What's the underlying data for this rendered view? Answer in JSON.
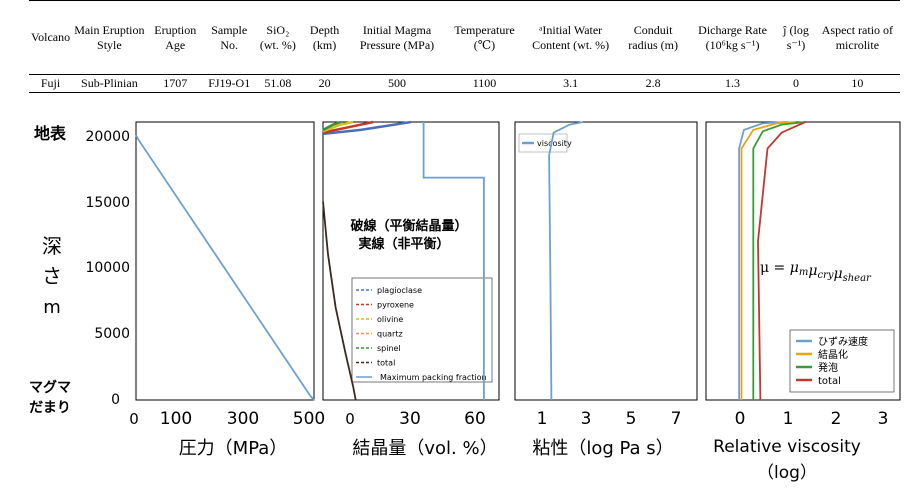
{
  "table": {
    "headers": [
      "Volcano",
      "Main Eruption Style",
      "Eruption Age",
      "Sample No.",
      "SiO₂ (wt. %)",
      "Depth (km)",
      "Initial Magma Pressure (MPa)",
      "Temperature (℃)",
      "ᵃInitial Water Content (wt. %)",
      "Conduit radius (m)",
      "Dicharge Rate (10⁶kg s⁻¹)",
      "ĵ (log s⁻¹)",
      "Aspect ratio of microlite"
    ],
    "row": [
      "Fuji",
      "Sub-Plinian",
      "1707",
      "FJ19-O1",
      "51.08",
      "20",
      "500",
      "1100",
      "3.1",
      "2.8",
      "1.3",
      "0",
      "10"
    ]
  },
  "y_axis": {
    "top_label": "地表",
    "depth_label": [
      "深",
      "さ",
      "m"
    ],
    "bottom_label": [
      "マグマ",
      "だまり"
    ],
    "ticks": [
      "20000",
      "15000",
      "10000",
      "5000",
      "0"
    ]
  },
  "annotation": {
    "dashed": "破線（平衡結晶量）",
    "solid": "実線（非平衡）"
  },
  "formula": "μ = μ_m μ_cry μ_shear",
  "chart_data": [
    {
      "type": "line",
      "xlabel": "圧力（MPa）",
      "ylabel": "深さ m",
      "x_ticks": [
        "0",
        "100",
        "300",
        "500"
      ],
      "xlim": [
        0,
        500
      ],
      "ylim": [
        0,
        21000
      ],
      "series": [
        {
          "values": [
            [
              0,
              20000
            ],
            [
              6,
              19700
            ],
            [
              490,
              300
            ],
            [
              500,
              0
            ]
          ],
          "color": "#6e9fd1"
        }
      ]
    },
    {
      "type": "line",
      "xlabel": "結晶量（vol. %）",
      "x_ticks": [
        "0",
        "30",
        "60"
      ],
      "xlim": [
        0,
        70
      ],
      "ylim": [
        0,
        21000
      ],
      "legend": [
        "plagioclase",
        "pyroxene",
        "olivine",
        "quartz",
        "spinel",
        "total",
        "Maximum packing fraction"
      ],
      "series": [
        {
          "name": "total",
          "values": [
            [
              0,
              15000
            ],
            [
              2,
              11000
            ],
            [
              5,
              7000
            ],
            [
              9,
              3500
            ],
            [
              12,
              1000
            ],
            [
              13,
              0
            ]
          ],
          "color": "#3a2a20"
        },
        {
          "name": "Maximum packing fraction",
          "values": [
            [
              40,
              21000
            ],
            [
              40,
              16800
            ],
            [
              64,
              16800
            ],
            [
              64,
              0
            ]
          ],
          "color": "#6e9fd1"
        },
        {
          "name": "plagioclase",
          "values": [
            [
              0,
              20100
            ],
            [
              15,
              20400
            ],
            [
              35,
              21000
            ]
          ],
          "color": "#4a6fb5"
        },
        {
          "name": "pyroxene",
          "values": [
            [
              0,
              20200
            ],
            [
              10,
              20600
            ],
            [
              20,
              21000
            ]
          ],
          "color": "#c0392b"
        },
        {
          "name": "olivine",
          "values": [
            [
              0,
              20300
            ],
            [
              7,
              20800
            ],
            [
              12,
              21000
            ]
          ],
          "color": "#d4c017"
        },
        {
          "name": "spinel",
          "values": [
            [
              0,
              20400
            ],
            [
              4,
              20800
            ],
            [
              7,
              21000
            ]
          ],
          "color": "#3a8d3a"
        }
      ]
    },
    {
      "type": "line",
      "xlabel": "粘性（log Pa s）",
      "x_ticks": [
        "1",
        "3",
        "5",
        "7"
      ],
      "xlim": [
        0,
        8
      ],
      "ylim": [
        0,
        21000
      ],
      "legend": [
        "viscosity"
      ],
      "series": [
        {
          "name": "viscosity",
          "values": [
            [
              1.6,
              0
            ],
            [
              1.55,
              10000
            ],
            [
              1.5,
              18500
            ],
            [
              1.7,
              20200
            ],
            [
              2.4,
              20800
            ],
            [
              3.0,
              21000
            ]
          ],
          "color": "#6e9fd1"
        }
      ]
    },
    {
      "type": "line",
      "xlabel": "Relative viscosity（log）",
      "x_ticks": [
        "0",
        "1",
        "2",
        "3"
      ],
      "xlim": [
        -0.7,
        3.4
      ],
      "ylim": [
        0,
        21000
      ],
      "legend": [
        "ひずみ速度",
        "結晶化",
        "発泡",
        "total"
      ],
      "series": [
        {
          "name": "ひずみ速度",
          "values": [
            [
              0,
              0
            ],
            [
              0,
              19000
            ],
            [
              0.1,
              20400
            ],
            [
              0.5,
              20900
            ],
            [
              1.0,
              21000
            ]
          ],
          "color": "#6e9fd1"
        },
        {
          "name": "結晶化",
          "values": [
            [
              0.05,
              0
            ],
            [
              0.05,
              19000
            ],
            [
              0.3,
              20400
            ],
            [
              0.8,
              20900
            ],
            [
              1.2,
              21000
            ]
          ],
          "color": "#e8a317"
        },
        {
          "name": "発泡",
          "values": [
            [
              0.3,
              0
            ],
            [
              0.3,
              19000
            ],
            [
              0.5,
              20300
            ],
            [
              0.9,
              20800
            ],
            [
              1.4,
              21000
            ]
          ],
          "color": "#3a9a3a"
        },
        {
          "name": "total",
          "values": [
            [
              0.45,
              0
            ],
            [
              0.4,
              12000
            ],
            [
              0.6,
              19000
            ],
            [
              0.9,
              20200
            ],
            [
              1.4,
              21000
            ]
          ],
          "color": "#c0392b"
        }
      ]
    }
  ]
}
